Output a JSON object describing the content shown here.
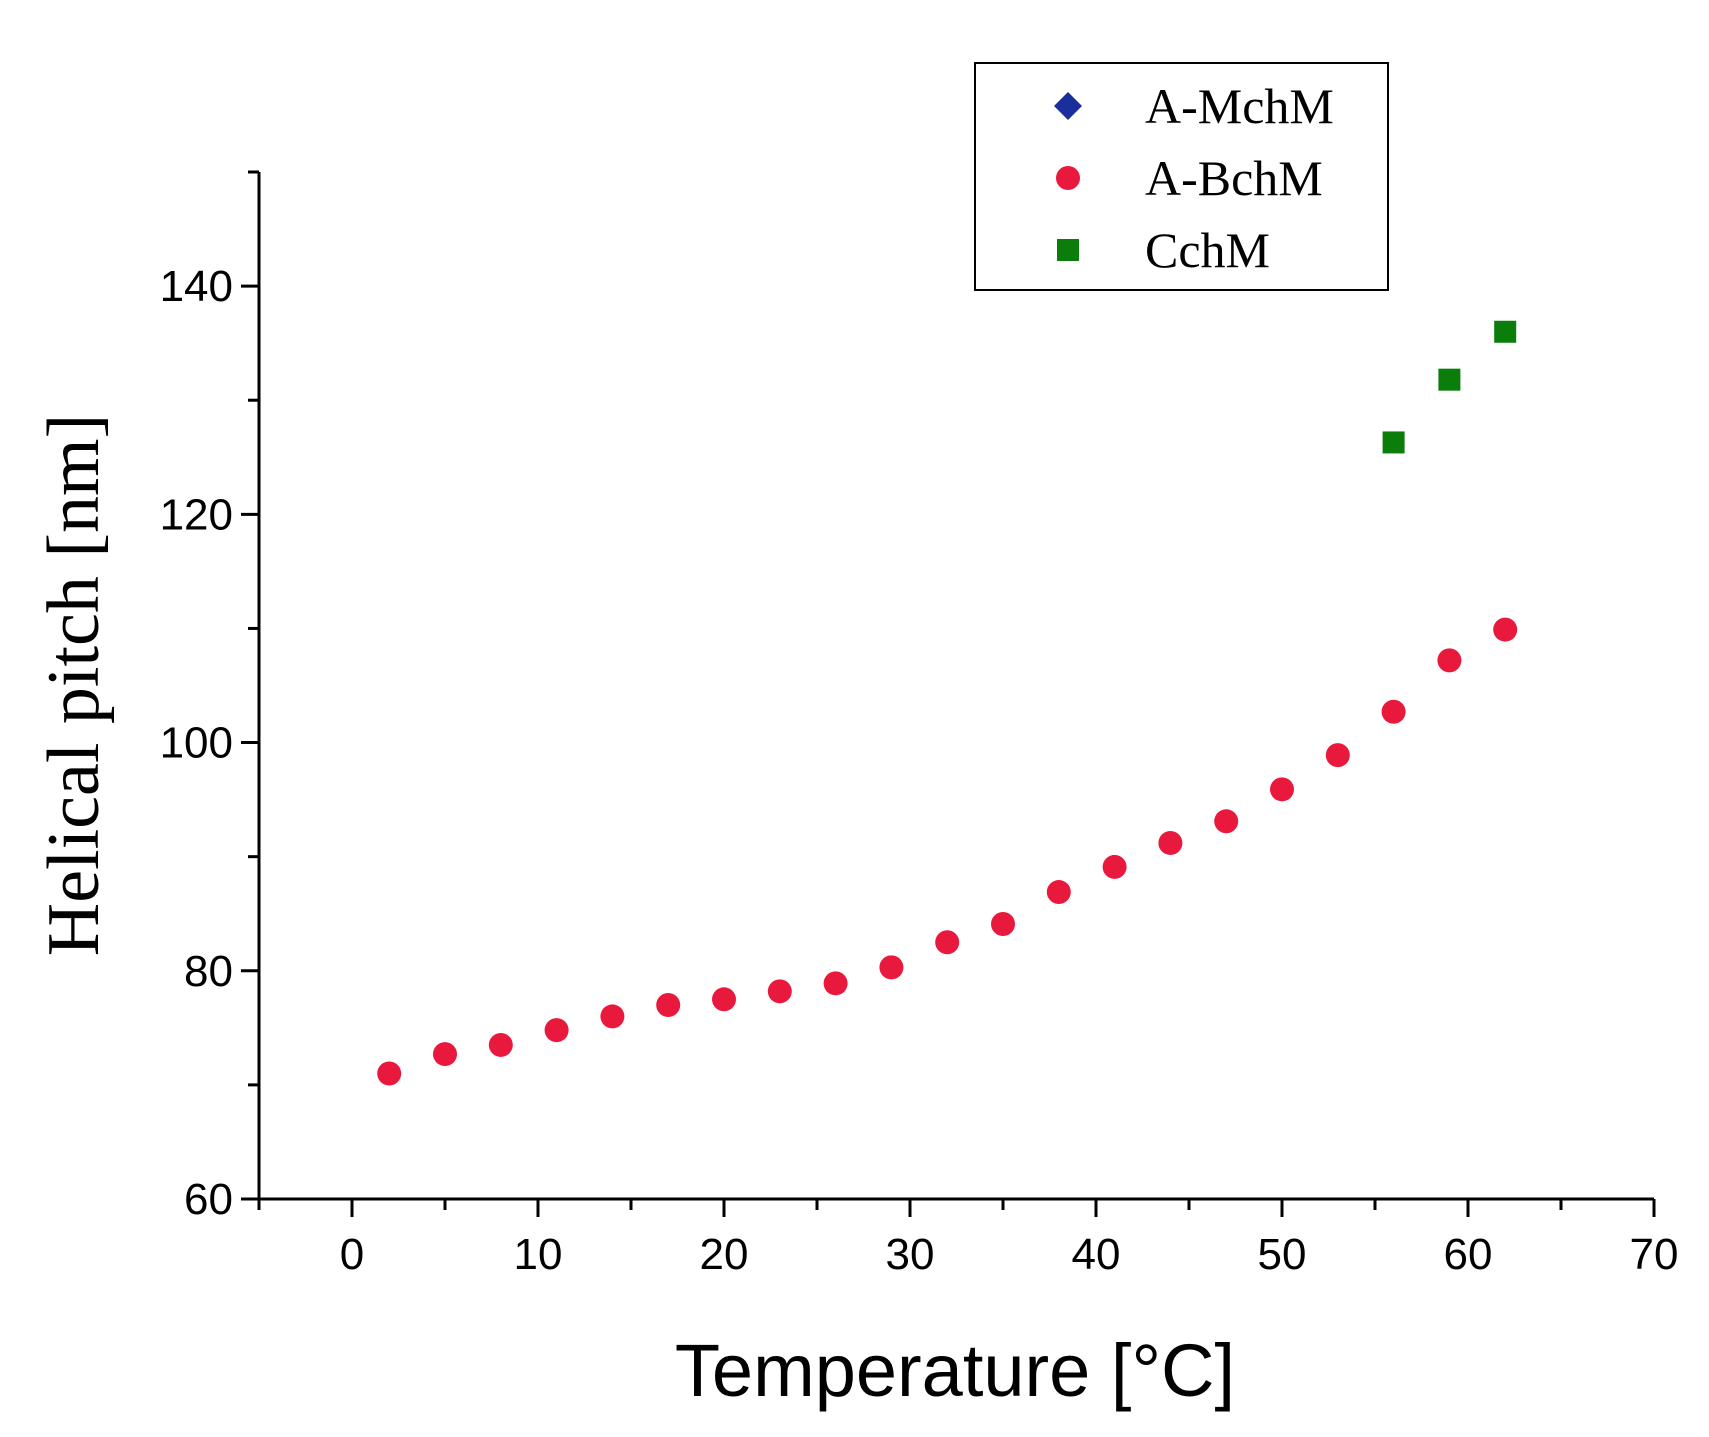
{
  "chart_data": {
    "type": "scatter",
    "xlabel": "Temperature [°C]",
    "ylabel": "Helical pitch [nm]",
    "xlim": [
      -5,
      70
    ],
    "ylim": [
      60,
      150
    ],
    "x_ticks": [
      0,
      10,
      20,
      30,
      40,
      50,
      60,
      70
    ],
    "x_tick_labels": [
      "0",
      "10",
      "20",
      "30",
      "40",
      "50",
      "60",
      "70"
    ],
    "y_ticks": [
      60,
      80,
      100,
      120,
      140
    ],
    "y_tick_labels": [
      "60",
      "80",
      "100",
      "120",
      "140"
    ],
    "grid": false,
    "legend_position": "top-right",
    "series": [
      {
        "name": "A-MchM",
        "marker": "diamond",
        "color": "#1a2f9c",
        "x": [],
        "y": []
      },
      {
        "name": "A-BchM",
        "marker": "circle",
        "color": "#e8193c",
        "x": [
          2,
          5,
          8,
          11,
          14,
          17,
          20,
          23,
          26,
          29,
          32,
          35,
          38,
          41,
          44,
          47,
          50,
          53,
          56,
          59,
          62
        ],
        "y": [
          71.0,
          72.7,
          73.5,
          74.8,
          76.0,
          77.0,
          77.5,
          78.2,
          78.9,
          80.3,
          82.5,
          84.1,
          86.9,
          89.1,
          91.2,
          93.1,
          95.9,
          98.9,
          102.7,
          107.2,
          109.9
        ]
      },
      {
        "name": "CchM",
        "marker": "square",
        "color": "#0a7d0a",
        "x": [
          56,
          59,
          62
        ],
        "y": [
          126.3,
          131.8,
          136.0
        ]
      }
    ]
  }
}
